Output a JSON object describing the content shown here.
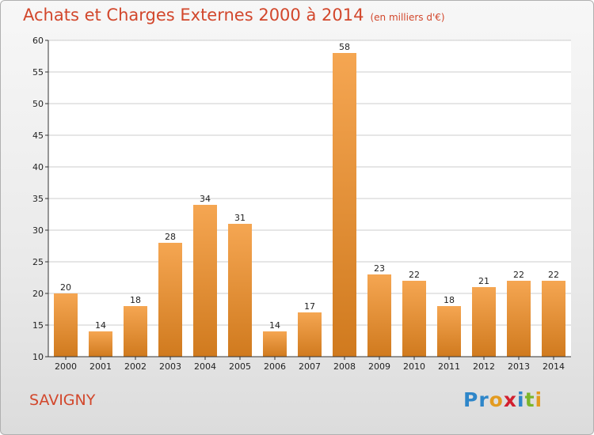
{
  "title": "Achats et Charges Externes 2000 à 2014",
  "subtitle": "(en milliers d'€)",
  "place": "SAVIGNY",
  "brand": {
    "text": "Proxiti",
    "letters": [
      {
        "ch": "P",
        "color": "#2e86c9"
      },
      {
        "ch": "r",
        "color": "#2e86c9"
      },
      {
        "ch": "o",
        "color": "#e39b20"
      },
      {
        "ch": "x",
        "color": "#d2202f"
      },
      {
        "ch": "i",
        "color": "#2e86c9"
      },
      {
        "ch": "t",
        "color": "#7cb52a"
      },
      {
        "ch": "i",
        "color": "#e39b20"
      }
    ]
  },
  "colors": {
    "title": "#d2472c",
    "bar_light": "#f5a652",
    "bar_dark": "#d07a1e",
    "grid": "#cccccc"
  },
  "chart_data": {
    "type": "bar",
    "categories": [
      "2000",
      "2001",
      "2002",
      "2003",
      "2004",
      "2005",
      "2006",
      "2007",
      "2008",
      "2009",
      "2010",
      "2011",
      "2012",
      "2013",
      "2014"
    ],
    "values": [
      20,
      14,
      18,
      28,
      34,
      31,
      14,
      17,
      58,
      23,
      22,
      18,
      21,
      22,
      22
    ],
    "ylim": [
      10,
      60
    ],
    "yticks": [
      10,
      15,
      20,
      25,
      30,
      35,
      40,
      45,
      50,
      55,
      60
    ],
    "grid": true,
    "data_labels": true
  }
}
